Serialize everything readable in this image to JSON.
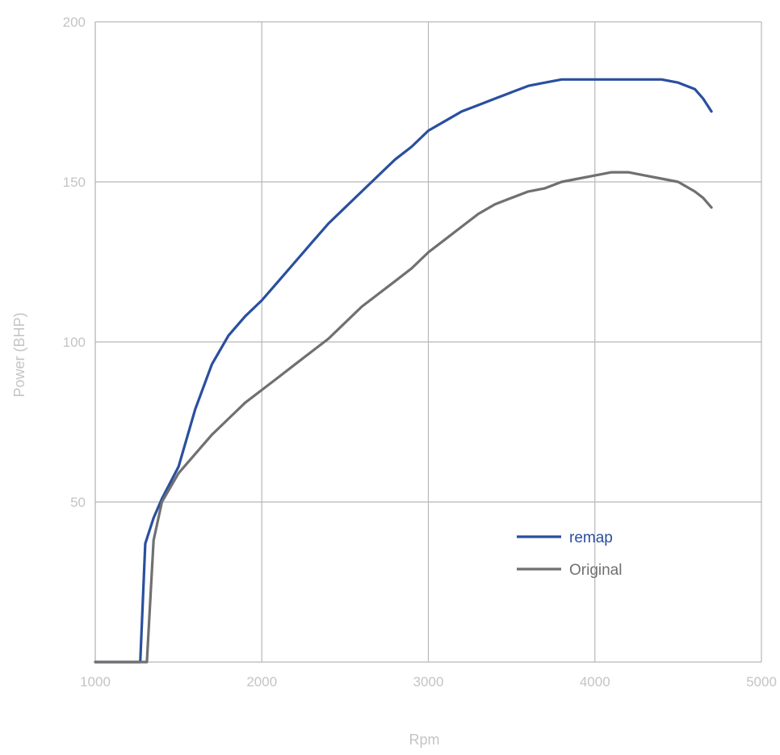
{
  "chart_data": {
    "type": "line",
    "title": "",
    "xlabel": "Rpm",
    "ylabel": "Power (BHP)",
    "xlim": [
      1000,
      5000
    ],
    "ylim": [
      0,
      200
    ],
    "xticks": [
      "1000",
      "2000",
      "3000",
      "4000",
      "5000"
    ],
    "yticks": [
      "50",
      "100",
      "150",
      "200"
    ],
    "grid": true,
    "legend_position": "bottom-right",
    "series": [
      {
        "name": "remap",
        "color": "#2a4f9e",
        "points": [
          [
            1000,
            0
          ],
          [
            1270,
            0
          ],
          [
            1300,
            37
          ],
          [
            1350,
            45
          ],
          [
            1400,
            51
          ],
          [
            1500,
            61
          ],
          [
            1600,
            79
          ],
          [
            1700,
            93
          ],
          [
            1800,
            102
          ],
          [
            1900,
            108
          ],
          [
            2000,
            113
          ],
          [
            2100,
            119
          ],
          [
            2200,
            125
          ],
          [
            2300,
            131
          ],
          [
            2400,
            137
          ],
          [
            2500,
            142
          ],
          [
            2600,
            147
          ],
          [
            2700,
            152
          ],
          [
            2800,
            157
          ],
          [
            2900,
            161
          ],
          [
            3000,
            166
          ],
          [
            3100,
            169
          ],
          [
            3200,
            172
          ],
          [
            3300,
            174
          ],
          [
            3400,
            176
          ],
          [
            3500,
            178
          ],
          [
            3600,
            180
          ],
          [
            3700,
            181
          ],
          [
            3800,
            182
          ],
          [
            3900,
            182
          ],
          [
            4000,
            182
          ],
          [
            4100,
            182
          ],
          [
            4200,
            182
          ],
          [
            4300,
            182
          ],
          [
            4400,
            182
          ],
          [
            4500,
            181
          ],
          [
            4600,
            179
          ],
          [
            4650,
            176
          ],
          [
            4700,
            172
          ]
        ]
      },
      {
        "name": "Original",
        "color": "#707070",
        "points": [
          [
            1000,
            0
          ],
          [
            1310,
            0
          ],
          [
            1350,
            38
          ],
          [
            1400,
            50
          ],
          [
            1500,
            59
          ],
          [
            1600,
            65
          ],
          [
            1700,
            71
          ],
          [
            1800,
            76
          ],
          [
            1900,
            81
          ],
          [
            2000,
            85
          ],
          [
            2100,
            89
          ],
          [
            2200,
            93
          ],
          [
            2300,
            97
          ],
          [
            2400,
            101
          ],
          [
            2500,
            106
          ],
          [
            2600,
            111
          ],
          [
            2700,
            115
          ],
          [
            2800,
            119
          ],
          [
            2900,
            123
          ],
          [
            3000,
            128
          ],
          [
            3100,
            132
          ],
          [
            3200,
            136
          ],
          [
            3300,
            140
          ],
          [
            3400,
            143
          ],
          [
            3500,
            145
          ],
          [
            3600,
            147
          ],
          [
            3700,
            148
          ],
          [
            3800,
            150
          ],
          [
            3900,
            151
          ],
          [
            4000,
            152
          ],
          [
            4100,
            153
          ],
          [
            4200,
            153
          ],
          [
            4300,
            152
          ],
          [
            4400,
            151
          ],
          [
            4500,
            150
          ],
          [
            4600,
            147
          ],
          [
            4650,
            145
          ],
          [
            4700,
            142
          ]
        ]
      }
    ]
  }
}
